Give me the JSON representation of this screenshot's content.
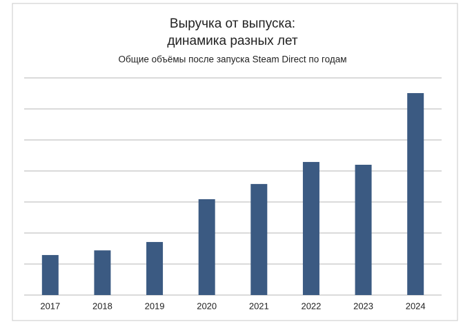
{
  "chart_data": {
    "type": "bar",
    "title": [
      "Выручка от выпуска:",
      "динамика разных лет"
    ],
    "subtitle": "Общие объёмы после запуска Steam Direct по годам",
    "categories": [
      "2017",
      "2018",
      "2019",
      "2020",
      "2021",
      "2022",
      "2023",
      "2024"
    ],
    "values": [
      1.29,
      1.44,
      1.71,
      3.09,
      3.58,
      4.29,
      4.2,
      6.51
    ],
    "color": "#3b5a82",
    "ylim": [
      0,
      7
    ],
    "yticks": [
      0,
      1,
      2,
      3,
      4,
      5,
      6,
      7
    ],
    "ytick_labels": false,
    "grid": true
  }
}
